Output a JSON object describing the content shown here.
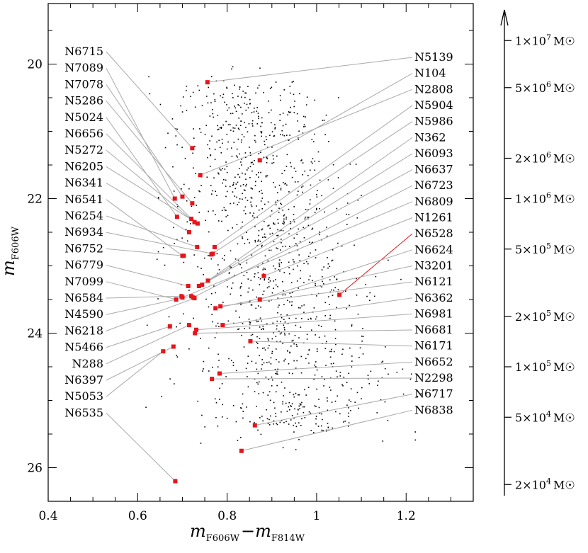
{
  "chart_data": {
    "type": "scatter",
    "title": "",
    "xlabel": "m_F606W − m_F814W",
    "xlabel_parts": {
      "m1": "m",
      "sub1": "F606W",
      "minus": "−",
      "m2": "m",
      "sub2": "F814W"
    },
    "ylabel": "m_F606W",
    "ylabel_parts": {
      "m": "m",
      "sub": "F606W"
    },
    "xlim": [
      0.4,
      1.35
    ],
    "ylim": [
      26.5,
      19.1
    ],
    "y_inverted": true,
    "grid": false,
    "xticks": [
      0.4,
      0.6,
      0.8,
      1.0,
      1.2
    ],
    "xtick_labels": [
      "0.4",
      "0.6",
      "0.8",
      "1",
      "1.2"
    ],
    "yticks": [
      20,
      22,
      24,
      26
    ],
    "ytick_labels": [
      "20",
      "22",
      "24",
      "26"
    ],
    "highlight_color": "#e8141b",
    "background_color": "#000000",
    "connector_color": "#aaaaaa",
    "highlight_name": "N6528",
    "clusters": [
      {
        "name": "N6715",
        "x": 0.722,
        "y": 21.25,
        "side": "left"
      },
      {
        "name": "N7089",
        "x": 0.683,
        "y": 22.0,
        "side": "left"
      },
      {
        "name": "N7078",
        "x": 0.7,
        "y": 21.97,
        "side": "left"
      },
      {
        "name": "N5286",
        "x": 0.722,
        "y": 22.07,
        "side": "left"
      },
      {
        "name": "N5024",
        "x": 0.688,
        "y": 22.27,
        "side": "left"
      },
      {
        "name": "N6656",
        "x": 0.72,
        "y": 22.3,
        "side": "left"
      },
      {
        "name": "N5272",
        "x": 0.727,
        "y": 22.35,
        "side": "left"
      },
      {
        "name": "N6205",
        "x": 0.734,
        "y": 22.37,
        "side": "left"
      },
      {
        "name": "N6341",
        "x": 0.715,
        "y": 22.5,
        "side": "left"
      },
      {
        "name": "N6541",
        "x": 0.7,
        "y": 22.85,
        "side": "left"
      },
      {
        "name": "N6254",
        "x": 0.733,
        "y": 22.72,
        "side": "left"
      },
      {
        "name": "N6934",
        "x": 0.768,
        "y": 22.82,
        "side": "left"
      },
      {
        "name": "N6752",
        "x": 0.703,
        "y": 22.85,
        "side": "left"
      },
      {
        "name": "N6779",
        "x": 0.713,
        "y": 23.3,
        "side": "left"
      },
      {
        "name": "N7099",
        "x": 0.686,
        "y": 23.5,
        "side": "left"
      },
      {
        "name": "N6584",
        "x": 0.698,
        "y": 23.45,
        "side": "left"
      },
      {
        "name": "N4590",
        "x": 0.72,
        "y": 23.45,
        "side": "left"
      },
      {
        "name": "N6218",
        "x": 0.727,
        "y": 23.48,
        "side": "left"
      },
      {
        "name": "N5466",
        "x": 0.672,
        "y": 23.9,
        "side": "left"
      },
      {
        "name": "N288",
        "x": 0.715,
        "y": 23.88,
        "side": "left"
      },
      {
        "name": "N6397",
        "x": 0.68,
        "y": 24.2,
        "side": "left"
      },
      {
        "name": "N5053",
        "x": 0.657,
        "y": 24.27,
        "side": "left"
      },
      {
        "name": "N6535",
        "x": 0.684,
        "y": 26.2,
        "side": "left"
      },
      {
        "name": "N5139",
        "x": 0.756,
        "y": 20.27,
        "side": "right"
      },
      {
        "name": "N104",
        "x": 0.873,
        "y": 21.43,
        "side": "right"
      },
      {
        "name": "N2808",
        "x": 0.74,
        "y": 21.65,
        "side": "right"
      },
      {
        "name": "N5904",
        "x": 0.772,
        "y": 22.72,
        "side": "right"
      },
      {
        "name": "N5986",
        "x": 0.765,
        "y": 22.83,
        "side": "right"
      },
      {
        "name": "N362",
        "x": 0.757,
        "y": 23.22,
        "side": "right"
      },
      {
        "name": "N6093",
        "x": 0.744,
        "y": 23.28,
        "side": "right"
      },
      {
        "name": "N6637",
        "x": 0.737,
        "y": 23.3,
        "side": "right"
      },
      {
        "name": "N6723",
        "x": 0.724,
        "y": 23.47,
        "side": "right"
      },
      {
        "name": "N6809",
        "x": 0.7,
        "y": 23.47,
        "side": "right"
      },
      {
        "name": "N1261",
        "x": 0.882,
        "y": 23.15,
        "side": "right"
      },
      {
        "name": "N6528",
        "x": 1.051,
        "y": 23.43,
        "side": "right"
      },
      {
        "name": "N6624",
        "x": 0.873,
        "y": 23.5,
        "side": "right"
      },
      {
        "name": "N3201",
        "x": 0.774,
        "y": 23.63,
        "side": "right"
      },
      {
        "name": "N6121",
        "x": 0.785,
        "y": 23.6,
        "side": "right"
      },
      {
        "name": "N6362",
        "x": 0.79,
        "y": 23.88,
        "side": "right"
      },
      {
        "name": "N6981",
        "x": 0.731,
        "y": 23.95,
        "side": "right"
      },
      {
        "name": "N6681",
        "x": 0.728,
        "y": 24.0,
        "side": "right"
      },
      {
        "name": "N6171",
        "x": 0.852,
        "y": 24.12,
        "side": "right"
      },
      {
        "name": "N6652",
        "x": 0.783,
        "y": 24.6,
        "side": "right"
      },
      {
        "name": "N2298",
        "x": 0.766,
        "y": 24.68,
        "side": "right"
      },
      {
        "name": "N6717",
        "x": 0.862,
        "y": 25.37,
        "side": "right"
      },
      {
        "name": "N6838",
        "x": 0.832,
        "y": 25.75,
        "side": "right"
      }
    ],
    "mass_scale": {
      "ticks": [
        {
          "label": "1×10⁷ M☉",
          "coef": "1",
          "exp": "7",
          "y": 19.65
        },
        {
          "label": "5×10⁶ M☉",
          "coef": "5",
          "exp": "6",
          "y": 20.35
        },
        {
          "label": "2×10⁶ M☉",
          "coef": "2",
          "exp": "6",
          "y": 21.4
        },
        {
          "label": "1×10⁶ M☉",
          "coef": "1",
          "exp": "6",
          "y": 22.0
        },
        {
          "label": "5×10⁵ M☉",
          "coef": "5",
          "exp": "5",
          "y": 22.75
        },
        {
          "label": "2×10⁵ M☉",
          "coef": "2",
          "exp": "5",
          "y": 23.75
        },
        {
          "label": "1×10⁵ M☉",
          "coef": "1",
          "exp": "5",
          "y": 24.5
        },
        {
          "label": "5×10⁴ M☉",
          "coef": "5",
          "exp": "4",
          "y": 25.25
        },
        {
          "label": "2×10⁴ M☉",
          "coef": "2",
          "exp": "4",
          "y": 26.25
        }
      ],
      "unit": "M☉"
    }
  }
}
